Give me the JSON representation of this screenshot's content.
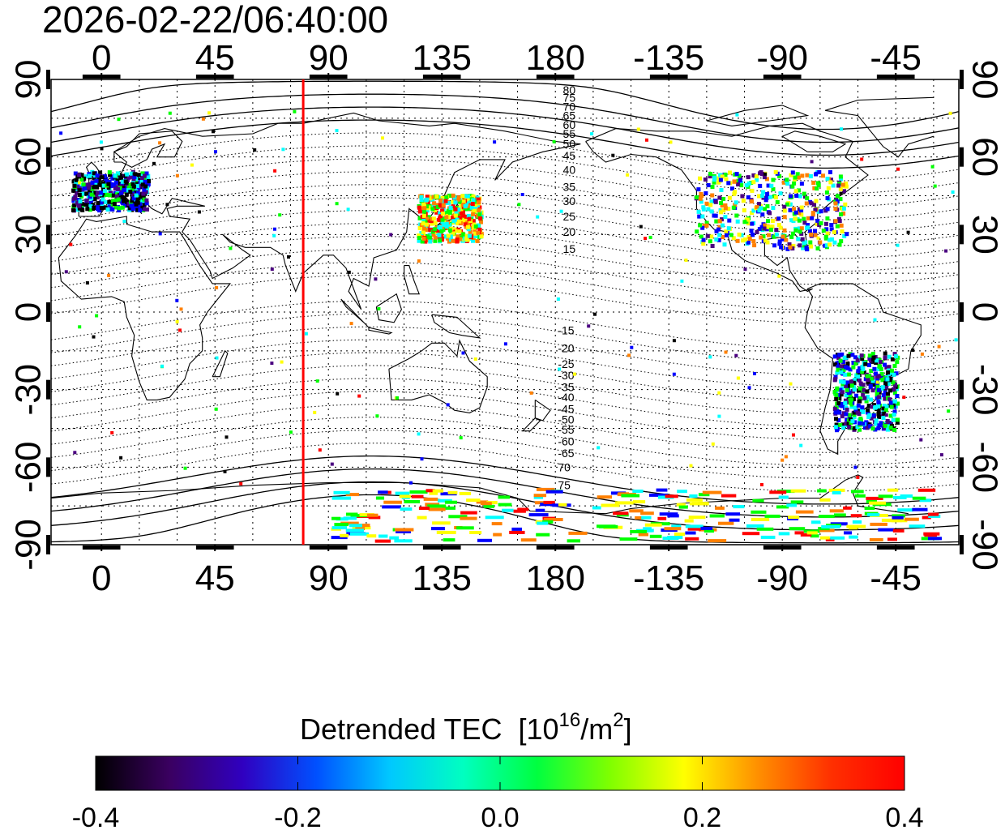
{
  "timestamp": "2026-02-22/06:40:00",
  "map": {
    "lon_ticks": [
      "0",
      "45",
      "90",
      "135",
      "180",
      "-135",
      "-90",
      "-45"
    ],
    "lat_ticks": [
      "90",
      "60",
      "30",
      "0",
      "-30",
      "-60",
      "-90"
    ],
    "left_lat_ticks": [
      "90",
      "60",
      "30",
      "0",
      "-30",
      "-60",
      "-90"
    ],
    "right_lat_ticks": [
      "90",
      "60",
      "30",
      "0",
      "-30",
      "-60",
      "-90"
    ],
    "longitude_range": [
      -20,
      340
    ],
    "latitude_range": [
      -90,
      90
    ],
    "red_line_longitude": 80,
    "magnetic_latitude_labels_north": [
      "80",
      "75",
      "70",
      "65",
      "60",
      "55",
      "50",
      "45",
      "40",
      "35",
      "30",
      "25",
      "20",
      "15"
    ],
    "magnetic_latitude_labels_south": [
      "-15",
      "-20",
      "-25",
      "-30",
      "-35",
      "-40",
      "-45",
      "-50",
      "-55",
      "-60",
      "-65",
      "70",
      "75"
    ],
    "grid": true
  },
  "colorbar": {
    "title": "Detrended TEC",
    "unit_base": "[10",
    "unit_exp": "16",
    "unit_mid": "/m",
    "unit_exp2": "2",
    "unit_end": "]",
    "tick_labels": [
      "-0.4",
      "-0.2",
      "0.0",
      "0.2",
      "0.4"
    ],
    "min": -0.4,
    "max": 0.4,
    "colors": [
      "#000000",
      "#4a0080",
      "#0000ff",
      "#00ffff",
      "#00ff00",
      "#ffff00",
      "#ff8000",
      "#ff0000"
    ]
  },
  "data_regions": [
    {
      "region": "Europe",
      "lon": [
        -12,
        18
      ],
      "lat": [
        40,
        55
      ],
      "mean_value": -0.2
    },
    {
      "region": "Japan",
      "lon": [
        125,
        150
      ],
      "lat": [
        28,
        46
      ],
      "mean_value": 0.15
    },
    {
      "region": "North America",
      "lon": [
        -125,
        -65
      ],
      "lat": [
        25,
        55
      ],
      "mean_value": 0.0
    },
    {
      "region": "South America",
      "lon": [
        -70,
        -45
      ],
      "lat": [
        -45,
        -15
      ],
      "mean_value": -0.15
    },
    {
      "region": "Antarctica",
      "lon": [
        90,
        330
      ],
      "lat": [
        -88,
        -68
      ],
      "mean_value": 0.1
    }
  ]
}
